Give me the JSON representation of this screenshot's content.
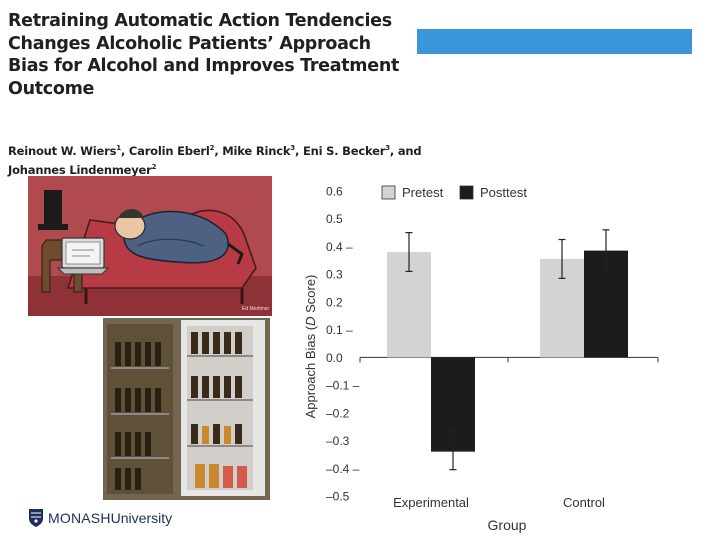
{
  "slide": {
    "title": "Retraining Automatic Action Tendencies Changes Alcoholic Patients’ Approach Bias for Alcohol and Improves Treatment Outcome",
    "authors": [
      {
        "name": "Reinout W. Wiers",
        "aff": "1",
        "sep": ", "
      },
      {
        "name": "Carolin Eberl",
        "aff": "2",
        "sep": ", "
      },
      {
        "name": "Mike Rinck",
        "aff": "3",
        "sep": ", "
      },
      {
        "name": "Eni S. Becker",
        "aff": "3",
        "sep": ", and "
      },
      {
        "name": "Johannes Lindenmeyer",
        "aff": "2",
        "sep": ""
      }
    ],
    "accent_color": "#3b95d9",
    "logo_text_bold": "MONASH",
    "logo_text_regular": "University",
    "logo_icon": "monash-crest-icon",
    "cartoon_signature": "Ed Mortimer"
  },
  "chart_data": {
    "type": "bar",
    "categories": [
      "Experimental",
      "Control"
    ],
    "series": [
      {
        "name": "Pretest",
        "color": "#d3d3d3",
        "values": [
          0.38,
          0.355
        ],
        "error": [
          [
            0.31,
            0.45
          ],
          [
            0.285,
            0.425
          ]
        ]
      },
      {
        "name": "Posttest",
        "color": "#1c1c1c",
        "values": [
          -0.34,
          0.385
        ],
        "error": [
          [
            -0.405,
            -0.265
          ],
          [
            0.315,
            0.46
          ]
        ]
      }
    ],
    "ylim": [
      -0.5,
      0.6
    ],
    "yticks": [
      0.6,
      0.5,
      0.4,
      0.3,
      0.2,
      0.1,
      0.0,
      -0.1,
      -0.2,
      -0.3,
      -0.4,
      -0.5
    ],
    "ytick_labels": [
      "0.6",
      "0.5",
      "0.4 –",
      "0.3",
      "0.2",
      "0.1 –",
      "0.0",
      "–0.1 –",
      "–0.2",
      "–0.3",
      "–0.4 –",
      "–0.5"
    ],
    "ylabel_prefix": "Approach Bias (",
    "ylabel_italic": "D",
    "ylabel_suffix": " Score)",
    "xlabel": "Group",
    "legend_position": "top"
  }
}
